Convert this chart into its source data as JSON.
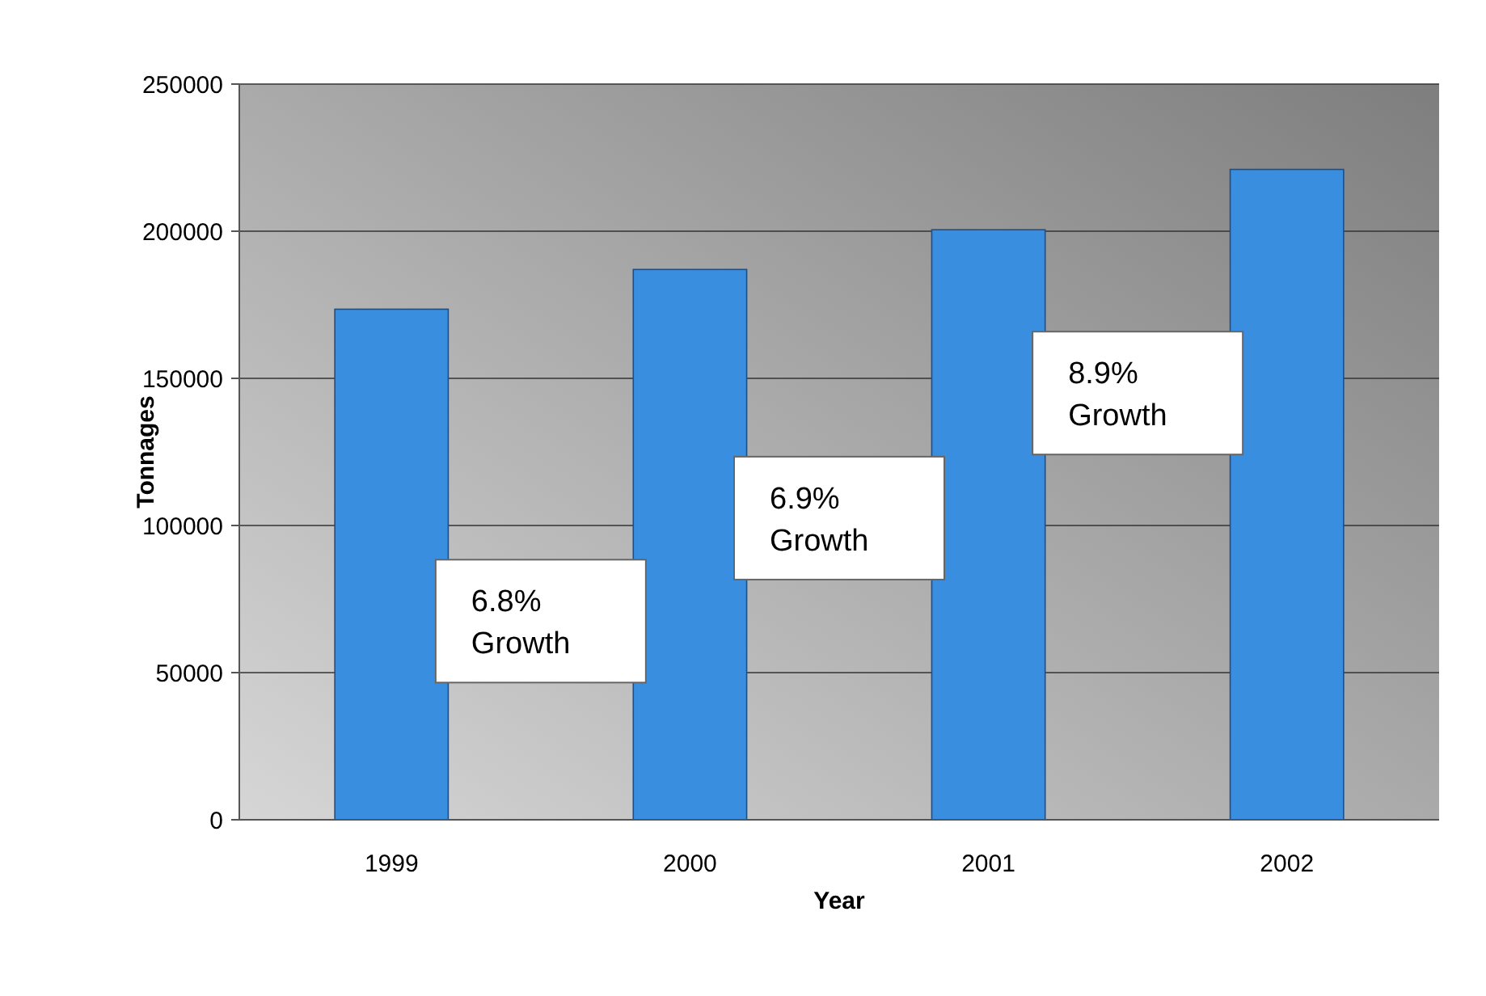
{
  "chart_data": {
    "type": "bar",
    "xlabel": "Year",
    "ylabel": "Tonnages",
    "categories": [
      "1999",
      "2000",
      "2001",
      "2002"
    ],
    "values": [
      173500,
      187000,
      200500,
      221000
    ],
    "color": "#3a8ee0",
    "ylim": [
      0,
      250000
    ],
    "yticks": [
      0,
      50000,
      100000,
      150000,
      200000,
      250000
    ],
    "grid": "y",
    "annotations": [
      "6.8% Growth",
      "6.9% Growth",
      "8.9% Growth"
    ]
  }
}
